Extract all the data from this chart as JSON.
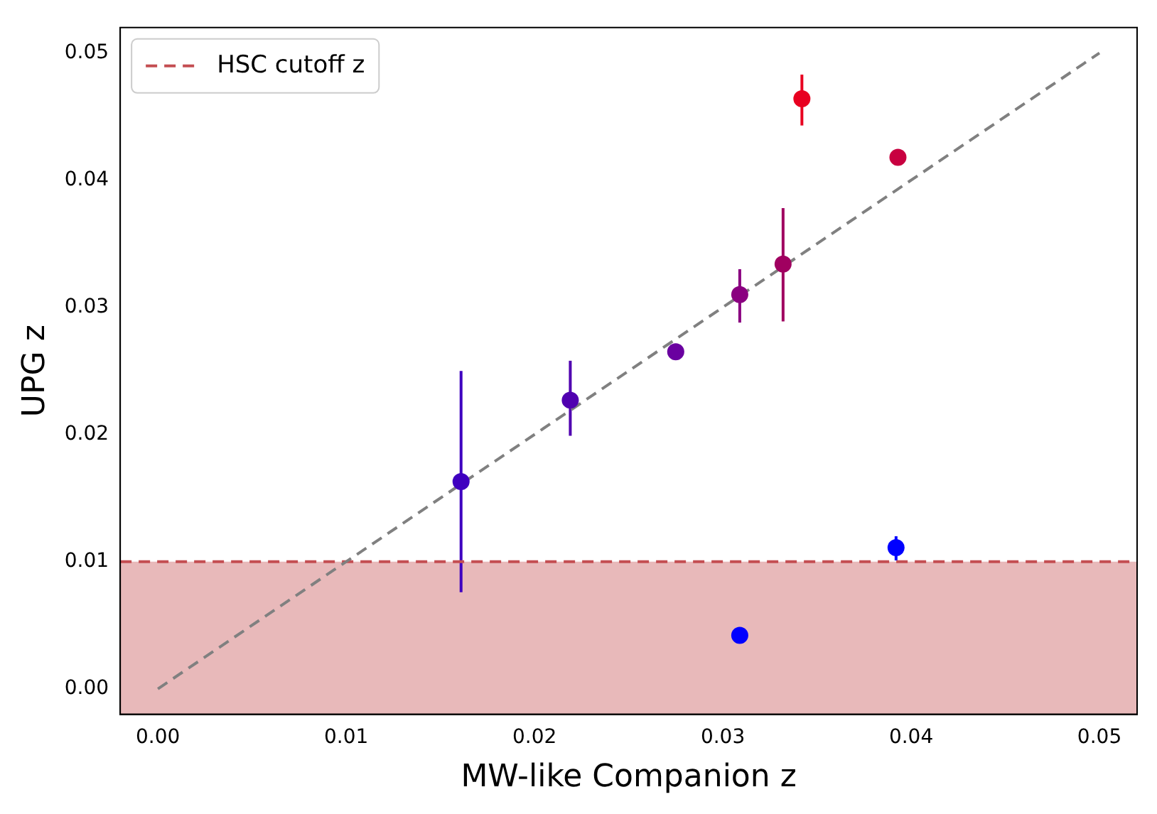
{
  "chart_data": {
    "type": "scatter",
    "xlabel": "MW-like Companion z",
    "ylabel": "UPG z",
    "xlim": [
      -0.002,
      0.052
    ],
    "ylim": [
      -0.002,
      0.052
    ],
    "xticks": [
      {
        "value": 0,
        "label": "0.00"
      },
      {
        "value": 0.01,
        "label": "0.01"
      },
      {
        "value": 0.02,
        "label": "0.02"
      },
      {
        "value": 0.03,
        "label": "0.03"
      },
      {
        "value": 0.04,
        "label": "0.04"
      },
      {
        "value": 0.05,
        "label": "0.05"
      }
    ],
    "yticks": [
      {
        "value": 0,
        "label": "0.00"
      },
      {
        "value": 0.01,
        "label": "0.01"
      },
      {
        "value": 0.02,
        "label": "0.02"
      },
      {
        "value": 0.03,
        "label": "0.03"
      },
      {
        "value": 0.04,
        "label": "0.04"
      },
      {
        "value": 0.05,
        "label": "0.05"
      }
    ],
    "grid": false,
    "legend": "top left",
    "marker": "circle",
    "series": [
      {
        "x": [
          0.0161,
          0.0219,
          0.0275,
          0.0309,
          0.0332,
          0.0342,
          0.0393,
          0.0392,
          0.0309
        ],
        "values": [
          0.0163,
          0.0227,
          0.0265,
          0.031,
          0.0334,
          0.0464,
          0.0418,
          0.0111,
          0.0042
        ],
        "colors": [
          "#3f00c0",
          "#5000b0",
          "#6a00a0",
          "#8a0080",
          "#a00060",
          "#e80020",
          "#c80040",
          "#0000ff",
          "#0000ff"
        ],
        "errors": [
          [
            0.0076,
            0.025
          ],
          [
            0.0199,
            0.0258
          ],
          null,
          [
            0.0288,
            0.033
          ],
          [
            0.0289,
            0.0378
          ],
          [
            0.0443,
            0.0483
          ],
          null,
          [
            0.0101,
            0.012
          ],
          null
        ]
      },
      {
        "type": "line",
        "x": [
          0,
          0.05
        ],
        "values": [
          0,
          0.05
        ],
        "color": "#808080",
        "line_style": "dashed",
        "marker": "none"
      }
    ],
    "ref_lines": [
      {
        "axis": "y",
        "value": 0.01,
        "label": "HSC cutoff z",
        "color": "#c44e52",
        "line_style": "dashed"
      }
    ],
    "bands": [
      {
        "axis": "y",
        "from": -0.002,
        "to": 0.01,
        "color": "#e8b9ba"
      }
    ]
  }
}
